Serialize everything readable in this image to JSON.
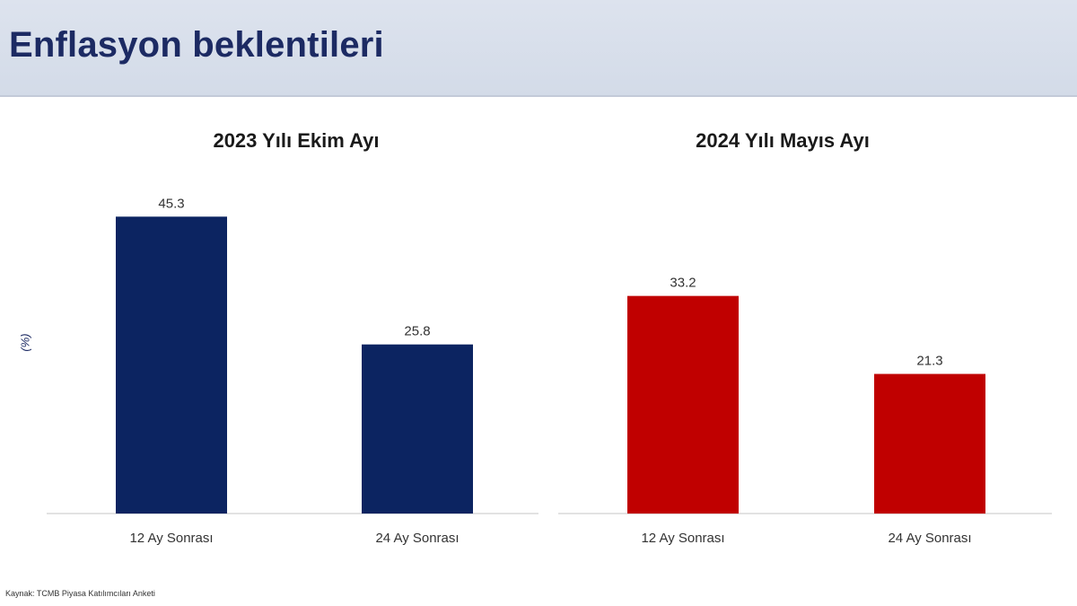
{
  "page": {
    "title": "Enflasyon beklentileri"
  },
  "source_note": "Kaynak: TCMB Piyasa Katılımcıları Anketi",
  "colors": {
    "left_series": "#0c2461",
    "right_series": "#c00000",
    "header_bg": "#d8dfea",
    "title": "#1c2a63"
  },
  "chart_data": [
    {
      "type": "bar",
      "title": "2023 Yılı Ekim Ayı",
      "ylabel": "(%)",
      "categories": [
        "12 Ay Sonrası",
        "24 Ay Sonrası"
      ],
      "values": [
        45.3,
        25.8
      ],
      "value_labels": [
        "45.3",
        "25.8"
      ],
      "color": "#0c2461",
      "ylim": [
        0,
        50
      ],
      "grid": false
    },
    {
      "type": "bar",
      "title": "2024 Yılı Mayıs Ayı",
      "ylabel": "",
      "categories": [
        "12 Ay Sonrası",
        "24 Ay Sonrası"
      ],
      "values": [
        33.2,
        21.3
      ],
      "value_labels": [
        "33.2",
        "21.3"
      ],
      "color": "#c00000",
      "ylim": [
        0,
        50
      ],
      "grid": false
    }
  ]
}
